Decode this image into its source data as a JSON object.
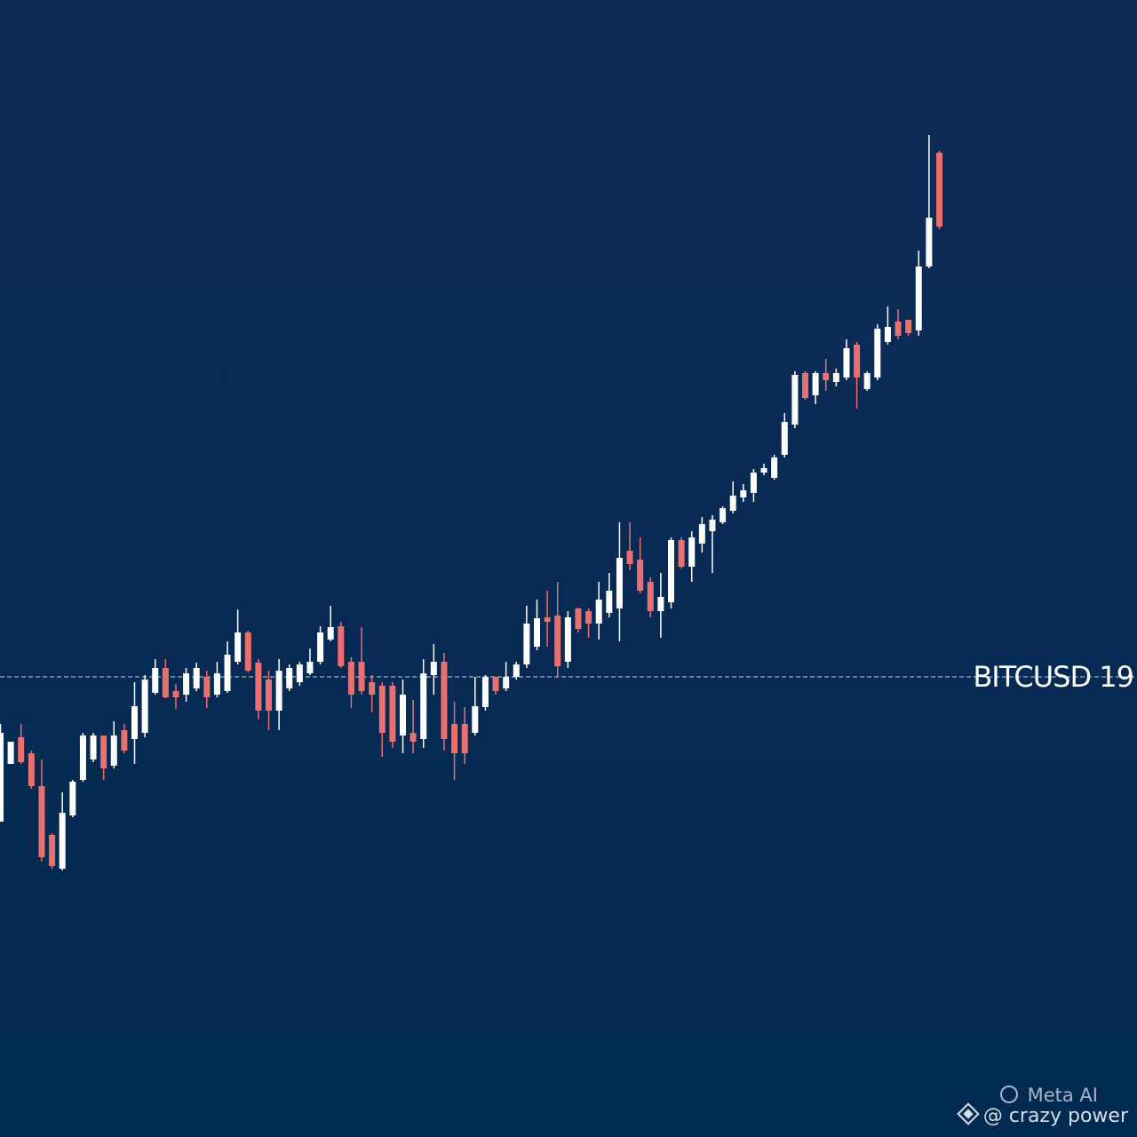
{
  "chart_data": {
    "type": "candlestick",
    "open": [
      355,
      420,
      450,
      432,
      395,
      340,
      302,
      362,
      402,
      425,
      452,
      418,
      458,
      448,
      455,
      500,
      528,
      502,
      498,
      505,
      518,
      498,
      502,
      535,
      568,
      534,
      515,
      480,
      505,
      512,
      522,
      535,
      560,
      575,
      535,
      535,
      512,
      508,
      508,
      452,
      455,
      448,
      520,
      535,
      465,
      465,
      455,
      484,
      518,
      505,
      518,
      532,
      552,
      585,
      587,
      535,
      595,
      592,
      578,
      590,
      595,
      660,
      650,
      625,
      592,
      602,
      672,
      642,
      668,
      682,
      692,
      705,
      720,
      725,
      748,
      742,
      768,
      802,
      860,
      835,
      860,
      850,
      855,
      892,
      842,
      855,
      895,
      918,
      920,
      908,
      980,
      1108
    ],
    "high": [
      465,
      445,
      465,
      435,
      425,
      342,
      388,
      402,
      455,
      455,
      452,
      468,
      465,
      512,
      520,
      538,
      538,
      510,
      528,
      534,
      525,
      535,
      558,
      594,
      570,
      538,
      525,
      538,
      532,
      535,
      550,
      575,
      598,
      580,
      540,
      574,
      520,
      512,
      512,
      515,
      492,
      538,
      555,
      545,
      490,
      484,
      518,
      520,
      518,
      535,
      535,
      598,
      605,
      615,
      625,
      592,
      596,
      595,
      625,
      635,
      692,
      692,
      675,
      630,
      635,
      675,
      675,
      682,
      698,
      700,
      710,
      738,
      735,
      752,
      758,
      768,
      815,
      862,
      862,
      862,
      876,
      865,
      898,
      895,
      862,
      915,
      935,
      932,
      920,
      998,
      1128,
      1110
    ],
    "low": [
      355,
      420,
      420,
      392,
      310,
      302,
      300,
      360,
      400,
      422,
      402,
      415,
      432,
      420,
      450,
      498,
      494,
      482,
      490,
      502,
      483,
      495,
      500,
      532,
      523,
      470,
      458,
      458,
      502,
      508,
      520,
      532,
      558,
      528,
      483,
      498,
      478,
      428,
      438,
      432,
      432,
      438,
      498,
      435,
      402,
      420,
      452,
      480,
      498,
      502,
      515,
      528,
      548,
      552,
      518,
      528,
      568,
      562,
      560,
      585,
      558,
      638,
      612,
      585,
      562,
      595,
      640,
      625,
      658,
      635,
      690,
      702,
      715,
      715,
      745,
      740,
      765,
      798,
      830,
      825,
      840,
      845,
      852,
      820,
      840,
      852,
      892,
      898,
      902,
      902,
      978,
      1022
    ],
    "close": [
      455,
      445,
      422,
      395,
      315,
      305,
      365,
      400,
      452,
      452,
      415,
      452,
      435,
      485,
      515,
      528,
      495,
      495,
      522,
      528,
      495,
      522,
      543,
      568,
      525,
      480,
      480,
      525,
      528,
      532,
      535,
      568,
      574,
      530,
      498,
      502,
      498,
      455,
      445,
      498,
      445,
      522,
      535,
      448,
      432,
      432,
      485,
      518,
      502,
      518,
      532,
      578,
      584,
      580,
      530,
      585,
      572,
      578,
      605,
      615,
      652,
      645,
      615,
      592,
      608,
      672,
      642,
      675,
      690,
      695,
      708,
      722,
      728,
      748,
      753,
      765,
      805,
      858,
      832,
      860,
      852,
      860,
      888,
      855,
      860,
      910,
      912,
      902,
      905,
      980,
      1035,
      1025
    ],
    "up_color": "#ffffff",
    "down_color": "#e8706e",
    "ylim": [
      0,
      1280
    ],
    "price_line": {
      "value": 518,
      "label": "BITCUSD 19"
    },
    "watermark": [
      "Meta AI",
      "@ crazy power"
    ]
  }
}
